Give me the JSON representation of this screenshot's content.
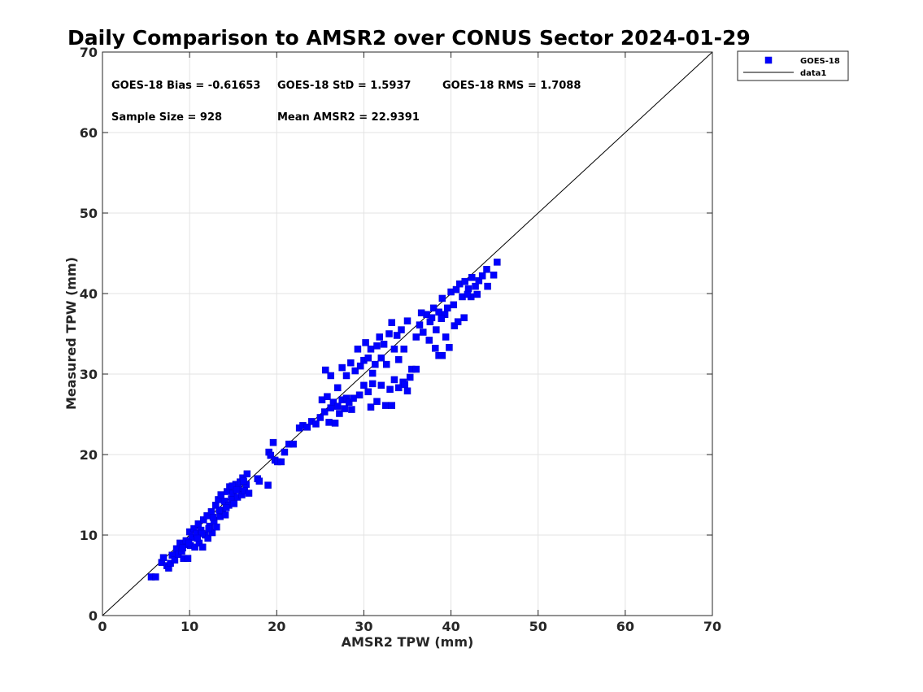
{
  "chart_data": {
    "type": "scatter",
    "title": "Daily Comparison to AMSR2 over CONUS Sector 2024-01-29",
    "xlabel": "AMSR2 TPW (mm)",
    "ylabel": "Measured TPW (mm)",
    "xlim": [
      0,
      70
    ],
    "ylim": [
      0,
      70
    ],
    "xticks": [
      "0",
      "10",
      "20",
      "30",
      "40",
      "50",
      "60",
      "70"
    ],
    "yticks": [
      "0",
      "10",
      "20",
      "30",
      "40",
      "50",
      "60",
      "70"
    ],
    "grid": true,
    "legend_position": "top-right, outside axes",
    "annotations": {
      "bias": "GOES-18 Bias = -0.61653",
      "std": "GOES-18 StD = 1.5937",
      "rms": "GOES-18 RMS = 1.7088",
      "sample": "Sample Size = 928",
      "mean": "Mean AMSR2 = 22.9391"
    },
    "colors": {
      "marker": "#0000ff",
      "line": "#000000",
      "grid": "#e3e3e3",
      "axis": "#262626"
    },
    "series": [
      {
        "name": "GOES-18",
        "marker": "square",
        "points": [
          [
            5.6,
            4.8
          ],
          [
            6.1,
            4.8
          ],
          [
            6.8,
            6.6
          ],
          [
            7.0,
            7.2
          ],
          [
            7.4,
            6.2
          ],
          [
            7.6,
            5.9
          ],
          [
            7.8,
            6.5
          ],
          [
            8.0,
            7.5
          ],
          [
            8.3,
            6.9
          ],
          [
            8.5,
            8.3
          ],
          [
            8.7,
            7.6
          ],
          [
            8.9,
            9.0
          ],
          [
            9.1,
            8.0
          ],
          [
            9.3,
            7.1
          ],
          [
            9.4,
            8.8
          ],
          [
            9.6,
            9.3
          ],
          [
            9.8,
            7.1
          ],
          [
            10.0,
            10.4
          ],
          [
            10.1,
            8.7
          ],
          [
            10.3,
            9.7
          ],
          [
            10.5,
            10.8
          ],
          [
            10.6,
            8.5
          ],
          [
            10.8,
            10.2
          ],
          [
            11.0,
            11.4
          ],
          [
            11.1,
            9.0
          ],
          [
            11.3,
            10.6
          ],
          [
            11.5,
            8.5
          ],
          [
            11.6,
            11.9
          ],
          [
            11.8,
            10.0
          ],
          [
            12.0,
            12.4
          ],
          [
            12.1,
            9.6
          ],
          [
            12.3,
            11.1
          ],
          [
            12.5,
            12.9
          ],
          [
            12.6,
            10.3
          ],
          [
            12.8,
            11.8
          ],
          [
            13.0,
            13.7
          ],
          [
            13.1,
            11.0
          ],
          [
            13.3,
            14.4
          ],
          [
            13.5,
            12.3
          ],
          [
            13.6,
            15.0
          ],
          [
            13.8,
            13.0
          ],
          [
            14.0,
            14.2
          ],
          [
            14.1,
            12.5
          ],
          [
            14.3,
            15.4
          ],
          [
            14.5,
            13.7
          ],
          [
            14.6,
            16.0
          ],
          [
            14.8,
            14.5
          ],
          [
            15.0,
            15.2
          ],
          [
            15.1,
            13.9
          ],
          [
            15.3,
            16.3
          ],
          [
            15.5,
            14.7
          ],
          [
            15.6,
            15.8
          ],
          [
            15.8,
            16.6
          ],
          [
            16.0,
            15.0
          ],
          [
            16.1,
            17.1
          ],
          [
            16.3,
            15.5
          ],
          [
            16.5,
            16.3
          ],
          [
            16.6,
            17.6
          ],
          [
            16.8,
            15.2
          ],
          [
            12.2,
            10.8
          ],
          [
            12.7,
            12.2
          ],
          [
            13.4,
            13.1
          ],
          [
            14.2,
            13.4
          ],
          [
            14.9,
            16.1
          ],
          [
            15.4,
            15.6
          ],
          [
            16.2,
            16.7
          ],
          [
            11.4,
            10.2
          ],
          [
            10.9,
            9.6
          ],
          [
            9.9,
            9.0
          ],
          [
            9.2,
            8.4
          ],
          [
            17.8,
            17.0
          ],
          [
            18.0,
            16.7
          ],
          [
            19.0,
            16.2
          ],
          [
            19.1,
            20.3
          ],
          [
            19.3,
            19.9
          ],
          [
            19.6,
            21.5
          ],
          [
            19.8,
            19.3
          ],
          [
            20.1,
            19.1
          ],
          [
            20.5,
            19.1
          ],
          [
            20.9,
            20.3
          ],
          [
            21.4,
            21.3
          ],
          [
            21.9,
            21.3
          ],
          [
            22.6,
            23.3
          ],
          [
            23.0,
            23.6
          ],
          [
            23.5,
            23.4
          ],
          [
            24.0,
            24.1
          ],
          [
            24.5,
            23.8
          ],
          [
            25.0,
            24.6
          ],
          [
            25.2,
            26.8
          ],
          [
            25.5,
            25.3
          ],
          [
            25.8,
            27.2
          ],
          [
            26.0,
            24.0
          ],
          [
            26.2,
            25.8
          ],
          [
            26.5,
            26.5
          ],
          [
            26.7,
            23.9
          ],
          [
            27.0,
            26.0
          ],
          [
            27.2,
            25.1
          ],
          [
            27.5,
            26.8
          ],
          [
            27.8,
            25.7
          ],
          [
            28.0,
            27.0
          ],
          [
            28.3,
            26.5
          ],
          [
            28.6,
            25.6
          ],
          [
            28.8,
            27.0
          ],
          [
            25.6,
            30.5
          ],
          [
            26.2,
            29.8
          ],
          [
            27.0,
            28.3
          ],
          [
            27.5,
            30.8
          ],
          [
            28.0,
            29.8
          ],
          [
            28.5,
            31.4
          ],
          [
            29.0,
            30.4
          ],
          [
            29.3,
            33.1
          ],
          [
            29.6,
            31.0
          ],
          [
            30.0,
            31.7
          ],
          [
            30.2,
            33.9
          ],
          [
            30.5,
            32.0
          ],
          [
            30.8,
            33.1
          ],
          [
            31.0,
            30.1
          ],
          [
            31.3,
            31.2
          ],
          [
            31.5,
            33.5
          ],
          [
            31.8,
            34.6
          ],
          [
            32.0,
            32.0
          ],
          [
            32.3,
            33.7
          ],
          [
            32.6,
            31.2
          ],
          [
            32.9,
            35.0
          ],
          [
            33.2,
            36.4
          ],
          [
            33.5,
            33.1
          ],
          [
            33.8,
            34.8
          ],
          [
            34.0,
            31.8
          ],
          [
            34.3,
            35.5
          ],
          [
            34.6,
            33.1
          ],
          [
            35.0,
            36.6
          ],
          [
            29.5,
            27.4
          ],
          [
            30.0,
            28.6
          ],
          [
            30.5,
            27.8
          ],
          [
            31.0,
            28.8
          ],
          [
            31.5,
            26.6
          ],
          [
            32.0,
            28.6
          ],
          [
            32.5,
            26.1
          ],
          [
            33.0,
            28.1
          ],
          [
            33.5,
            29.3
          ],
          [
            34.0,
            28.3
          ],
          [
            34.5,
            29.0
          ],
          [
            35.0,
            27.9
          ],
          [
            35.5,
            30.6
          ],
          [
            36.0,
            30.6
          ],
          [
            30.8,
            25.9
          ],
          [
            33.2,
            26.1
          ],
          [
            34.7,
            28.7
          ],
          [
            35.3,
            29.6
          ],
          [
            36.0,
            34.6
          ],
          [
            36.4,
            36.1
          ],
          [
            36.8,
            35.2
          ],
          [
            37.2,
            37.4
          ],
          [
            37.6,
            36.5
          ],
          [
            38.0,
            38.2
          ],
          [
            38.3,
            35.5
          ],
          [
            38.6,
            37.7
          ],
          [
            39.0,
            39.4
          ],
          [
            39.3,
            37.4
          ],
          [
            39.6,
            38.2
          ],
          [
            40.0,
            40.2
          ],
          [
            40.3,
            38.6
          ],
          [
            40.6,
            40.5
          ],
          [
            41.0,
            41.2
          ],
          [
            41.3,
            39.6
          ],
          [
            41.6,
            41.5
          ],
          [
            42.0,
            40.6
          ],
          [
            42.4,
            42.0
          ],
          [
            42.8,
            40.9
          ],
          [
            43.2,
            41.6
          ],
          [
            43.6,
            42.2
          ],
          [
            44.1,
            43.0
          ],
          [
            44.9,
            42.3
          ],
          [
            45.3,
            43.9
          ],
          [
            37.5,
            34.2
          ],
          [
            38.2,
            33.2
          ],
          [
            38.6,
            32.3
          ],
          [
            39.0,
            32.3
          ],
          [
            39.4,
            34.6
          ],
          [
            39.8,
            33.3
          ],
          [
            40.4,
            36.0
          ],
          [
            40.8,
            36.5
          ],
          [
            41.5,
            37.0
          ],
          [
            42.3,
            39.6
          ],
          [
            43.0,
            39.9
          ],
          [
            44.2,
            40.9
          ],
          [
            37.8,
            37.0
          ],
          [
            38.9,
            36.9
          ],
          [
            41.9,
            39.9
          ],
          [
            36.6,
            37.6
          ]
        ]
      },
      {
        "name": "data1",
        "style": "line",
        "points": [
          [
            0,
            0
          ],
          [
            70,
            70
          ]
        ]
      }
    ]
  }
}
